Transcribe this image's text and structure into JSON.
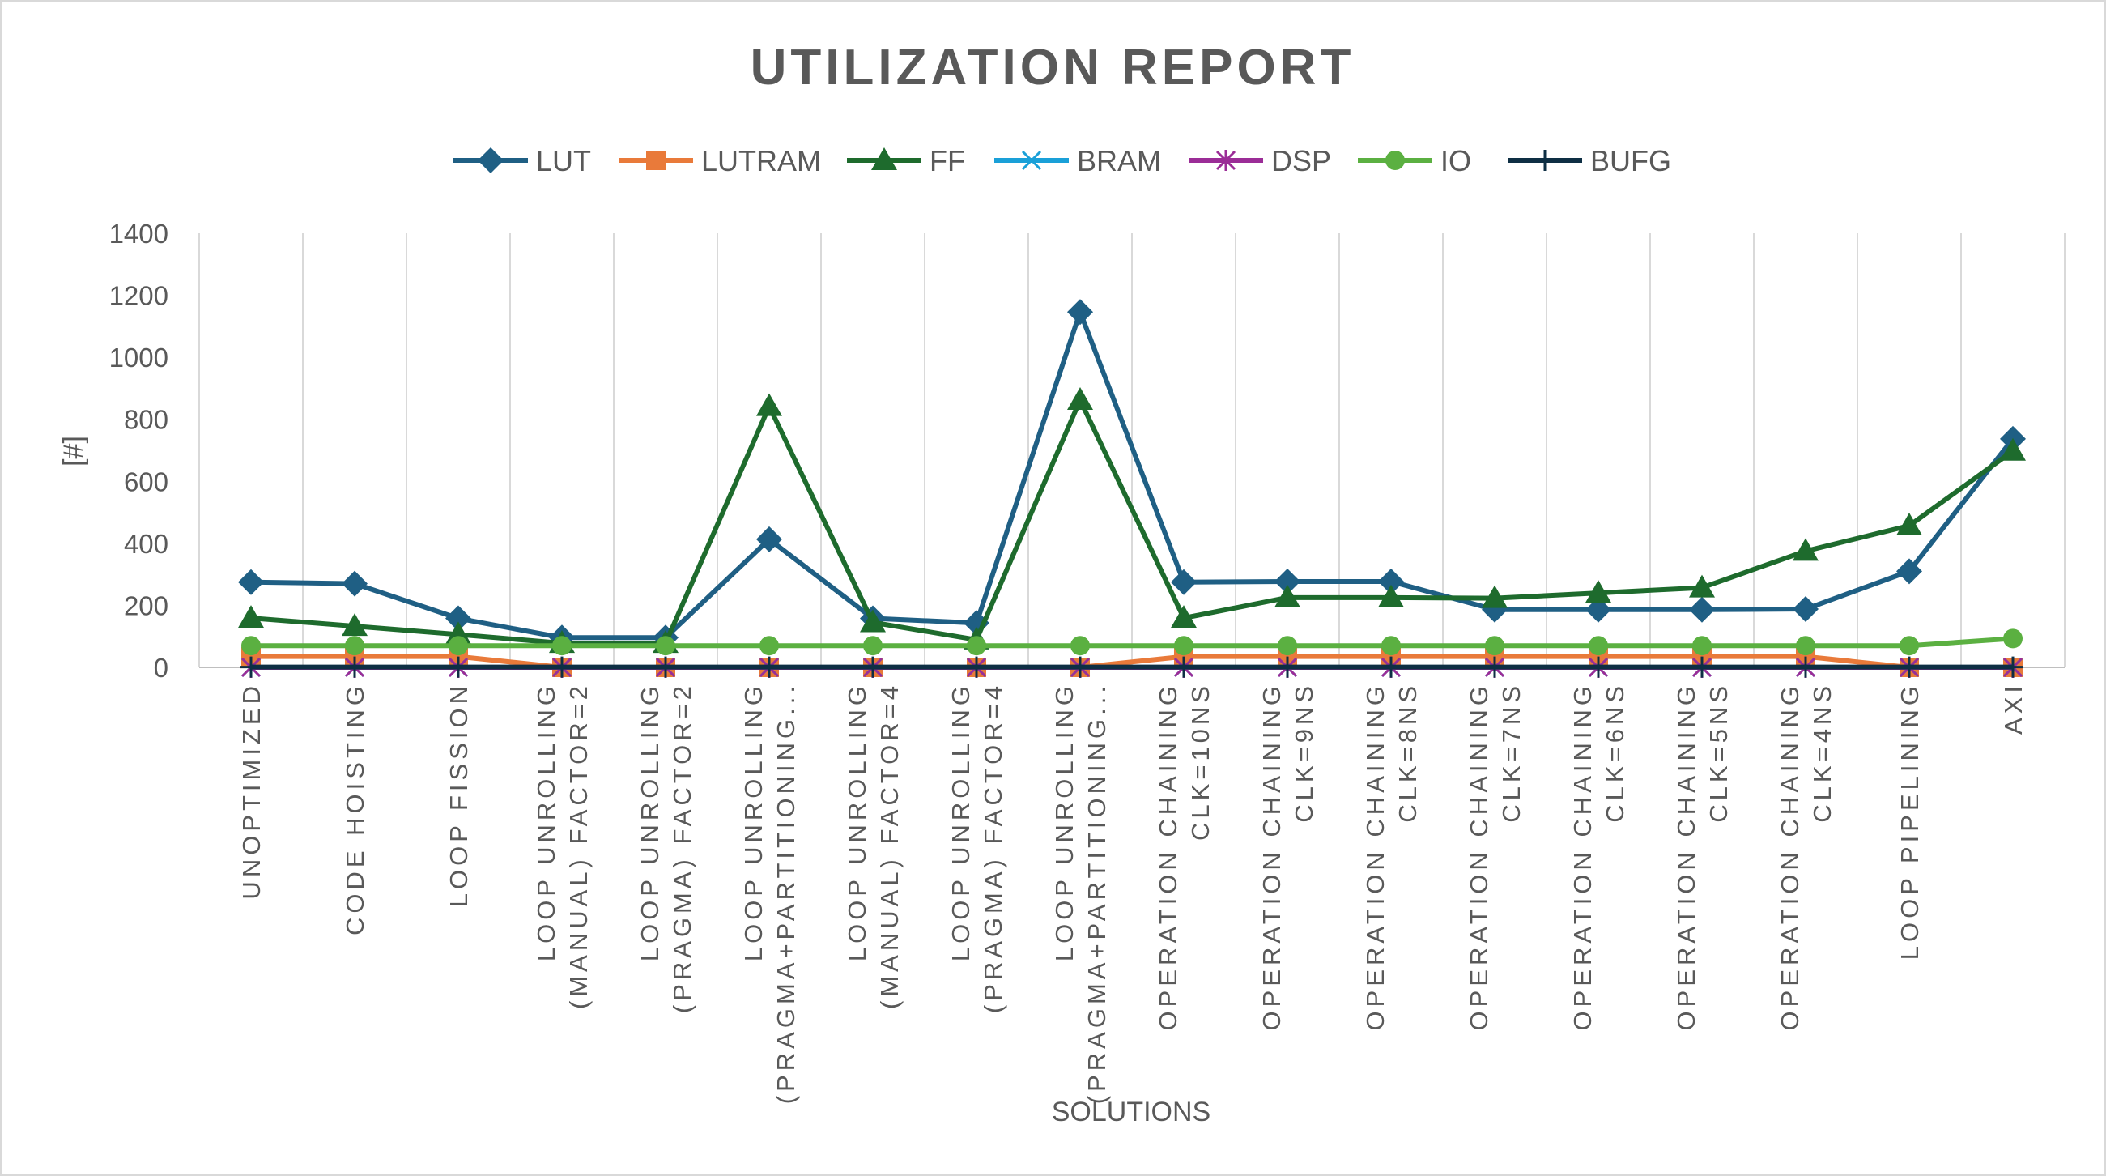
{
  "chart_data": {
    "type": "line",
    "title": "UTILIZATION REPORT",
    "xlabel": "SOLUTIONS",
    "ylabel": "[#]",
    "ylim": [
      0,
      1400
    ],
    "yticks": [
      0,
      200,
      400,
      600,
      800,
      1000,
      1200,
      1400
    ],
    "grid": "vertical",
    "legend_position": "top",
    "categories": [
      [
        "UNOPTIMIZED"
      ],
      [
        "CODE HOISTING"
      ],
      [
        "LOOP FISSION"
      ],
      [
        "LOOP UNROLLING",
        "(MANUAL) FACTOR=2"
      ],
      [
        "LOOP UNROLLING",
        "(PRAGMA) FACTOR=2"
      ],
      [
        "LOOP UNROLLING",
        "(PRAGMA+PARTITIONING..."
      ],
      [
        "LOOP UNROLLING",
        "(MANUAL) FACTOR=4"
      ],
      [
        "LOOP UNROLLING",
        "(PRAGMA) FACTOR=4"
      ],
      [
        "LOOP UNROLLING",
        "(PRAGMA+PARTITIONING..."
      ],
      [
        "OPERATION CHAINING",
        "CLK=10NS"
      ],
      [
        "OPERATION CHAINING",
        "CLK=9NS"
      ],
      [
        "OPERATION CHAINING",
        "CLK=8NS"
      ],
      [
        "OPERATION CHAINING",
        "CLK=7NS"
      ],
      [
        "OPERATION CHAINING",
        "CLK=6NS"
      ],
      [
        "OPERATION CHAINING",
        "CLK=5NS"
      ],
      [
        "OPERATION CHAINING",
        "CLK=4NS"
      ],
      [
        "LOOP PIPELINING"
      ],
      [
        "AXI"
      ]
    ],
    "series": [
      {
        "name": "LUT",
        "color": "#1f5f84",
        "marker": "diamond",
        "values": [
          275,
          270,
          158,
          96,
          96,
          413,
          158,
          143,
          1146,
          275,
          277,
          277,
          186,
          186,
          186,
          188,
          310,
          737
        ]
      },
      {
        "name": "LUTRAM",
        "color": "#e97a3a",
        "marker": "square",
        "values": [
          35,
          35,
          35,
          0,
          0,
          0,
          0,
          0,
          0,
          35,
          35,
          35,
          35,
          35,
          35,
          35,
          0,
          0
        ]
      },
      {
        "name": "FF",
        "color": "#1e6b2d",
        "marker": "triangle",
        "values": [
          159,
          133,
          106,
          78,
          78,
          842,
          145,
          89,
          862,
          159,
          225,
          225,
          223,
          240,
          257,
          375,
          457,
          698
        ]
      },
      {
        "name": "BRAM",
        "color": "#1aa0d8",
        "marker": "x",
        "values": [
          0,
          0,
          0,
          0,
          0,
          0,
          0,
          0,
          0,
          0,
          0,
          0,
          0,
          0,
          0,
          0,
          0,
          0
        ]
      },
      {
        "name": "DSP",
        "color": "#9b2d97",
        "marker": "star",
        "values": [
          0,
          0,
          0,
          0,
          0,
          0,
          0,
          0,
          0,
          0,
          0,
          0,
          0,
          0,
          0,
          0,
          0,
          0
        ]
      },
      {
        "name": "IO",
        "color": "#5bb041",
        "marker": "circle",
        "values": [
          70,
          70,
          70,
          70,
          70,
          70,
          70,
          70,
          70,
          70,
          70,
          70,
          70,
          70,
          70,
          70,
          70,
          93
        ]
      },
      {
        "name": "BUFG",
        "color": "#0e2f44",
        "marker": "plus",
        "values": [
          1,
          1,
          1,
          1,
          1,
          1,
          1,
          1,
          1,
          1,
          1,
          1,
          1,
          1,
          1,
          1,
          1,
          1
        ]
      }
    ]
  }
}
